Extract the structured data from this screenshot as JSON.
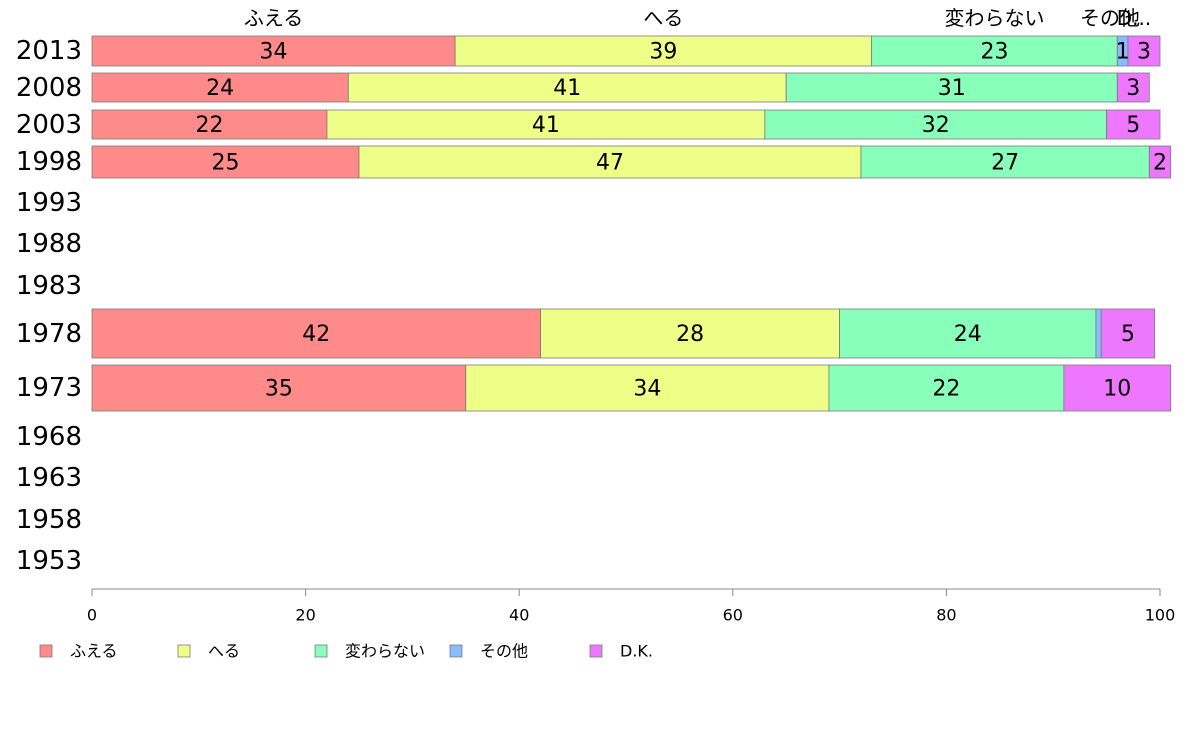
{
  "chart_data": {
    "type": "bar",
    "orientation": "horizontal",
    "stacked": true,
    "title": "",
    "xlabel": "",
    "ylabel": "",
    "xlim": [
      0,
      100
    ],
    "x_ticks": [
      "0",
      "20",
      "40",
      "60",
      "80",
      "100"
    ],
    "grid": false,
    "legend_position": "bottom-left",
    "categories": [
      "2013",
      "2008",
      "2003",
      "1998",
      "1993",
      "1988",
      "1983",
      "1978",
      "1973",
      "1968",
      "1963",
      "1958",
      "1953"
    ],
    "top_labels": [
      "ふえる",
      "へる",
      "変わらない",
      "その他",
      "D.K."
    ],
    "series": [
      {
        "name": "ふえる",
        "color": "#ff8a8a",
        "values": [
          34,
          24,
          22,
          25,
          null,
          null,
          null,
          42,
          35,
          null,
          null,
          null,
          null
        ]
      },
      {
        "name": "へる",
        "color": "#eeff88",
        "values": [
          39,
          41,
          41,
          47,
          null,
          null,
          null,
          28,
          34,
          null,
          null,
          null,
          null
        ]
      },
      {
        "name": "変わらない",
        "color": "#88ffbb",
        "values": [
          23,
          31,
          32,
          27,
          null,
          null,
          null,
          24,
          22,
          null,
          null,
          null,
          null
        ]
      },
      {
        "name": "その他",
        "color": "#88bbff",
        "values": [
          1,
          0,
          0,
          0,
          null,
          null,
          null,
          0.5,
          0,
          null,
          null,
          null,
          null
        ]
      },
      {
        "name": "D.K.",
        "color": "#ee77ff",
        "values": [
          3,
          3,
          5,
          2,
          null,
          null,
          null,
          5,
          10,
          null,
          null,
          null,
          null
        ]
      }
    ],
    "value_labels": [
      [
        "34",
        "39",
        "23",
        "1",
        "3"
      ],
      [
        "24",
        "41",
        "31",
        "",
        "3"
      ],
      [
        "22",
        "41",
        "32",
        "",
        "5"
      ],
      [
        "25",
        "47",
        "27",
        "",
        "2"
      ],
      [],
      [],
      [],
      [
        "42",
        "28",
        "24",
        "",
        "5"
      ],
      [
        "35",
        "34",
        "22",
        "",
        "10"
      ],
      [],
      [],
      [],
      []
    ]
  }
}
